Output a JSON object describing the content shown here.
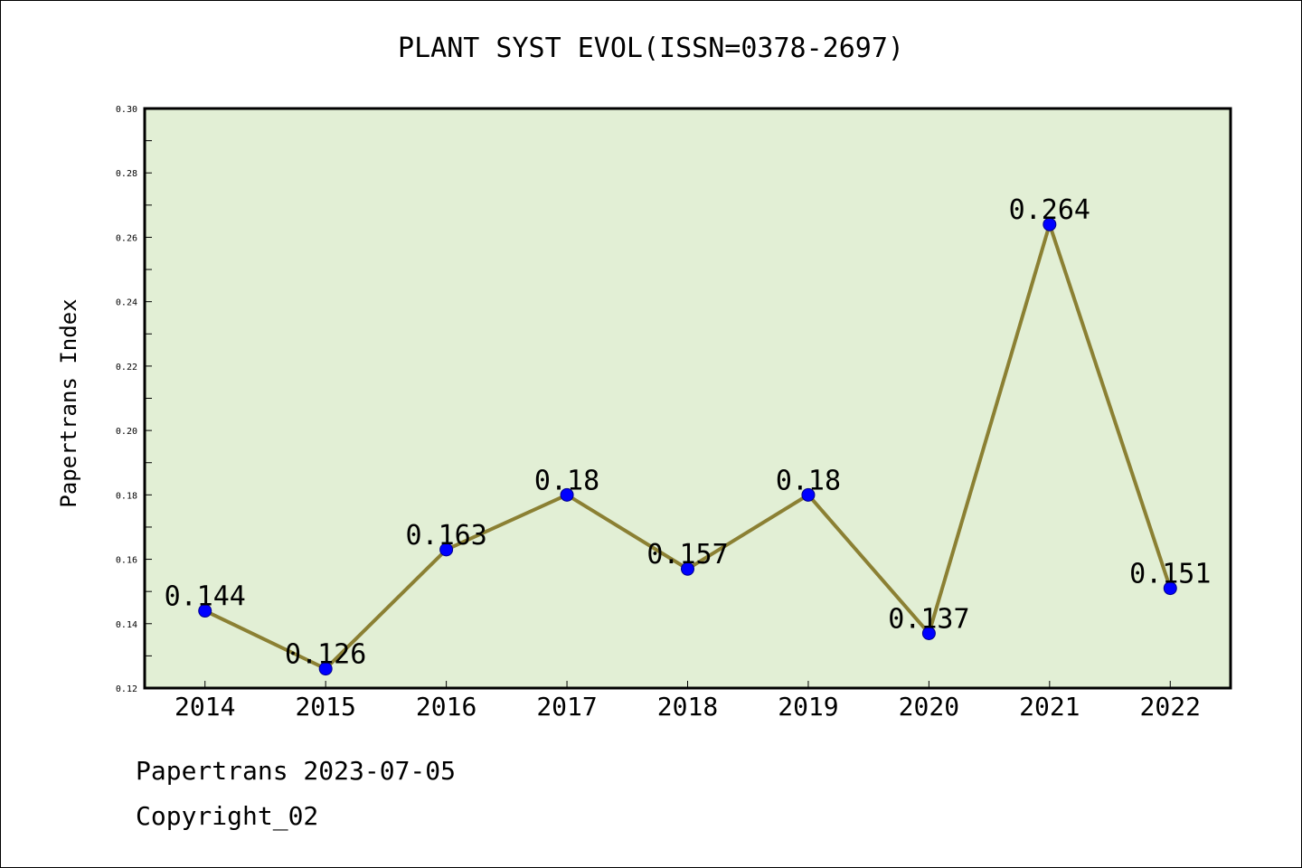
{
  "chart_data": {
    "type": "line",
    "title": "PLANT SYST EVOL(ISSN=0378-2697)",
    "xlabel": "",
    "ylabel": "Papertrans Index",
    "categories": [
      "2014",
      "2015",
      "2016",
      "2017",
      "2018",
      "2019",
      "2020",
      "2021",
      "2022"
    ],
    "series": [
      {
        "values": [
          0.144,
          0.126,
          0.163,
          0.18,
          0.157,
          0.18,
          0.137,
          0.264,
          0.151
        ],
        "labels": [
          "0.144",
          "0.126",
          "0.163",
          "0.18",
          "0.157",
          "0.18",
          "0.137",
          "0.264",
          "0.151"
        ]
      }
    ],
    "ylim": [
      0.12,
      0.3
    ],
    "yticks": [
      "0.12",
      "0.14",
      "0.16",
      "0.18",
      "0.20",
      "0.22",
      "0.24",
      "0.26",
      "0.28",
      "0.30"
    ],
    "grid": false,
    "legend": "none"
  },
  "footer": {
    "line1": "Papertrans 2023-07-05",
    "line2": "Copyright_02"
  },
  "colors": {
    "plot_background": "#e2efd5",
    "line": "#8b8033",
    "marker": "#0000ff",
    "axis": "#000000"
  }
}
